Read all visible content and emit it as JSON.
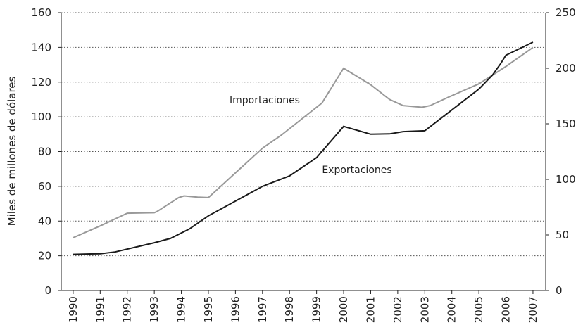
{
  "chart_data": {
    "type": "line",
    "ylabel": "Miles de millones de dólares",
    "xlim": [
      1989.56,
      2007.47
    ],
    "xticks": [
      1990,
      1991,
      1992,
      1993,
      1994,
      1995,
      1996,
      1997,
      1998,
      1999,
      2000,
      2001,
      2002,
      2003,
      2004,
      2005,
      2006,
      2007
    ],
    "ylim": [
      0,
      160
    ],
    "yticks": [
      0,
      20,
      40,
      60,
      80,
      100,
      120,
      140,
      160
    ],
    "y2lim": [
      0,
      250
    ],
    "y2ticks": [
      0,
      50,
      100,
      150,
      200,
      250
    ],
    "grid": true,
    "annotations": [
      {
        "text": "Importaciones",
        "series": 0
      },
      {
        "text": "Exportaciones",
        "series": 1
      }
    ],
    "series": [
      {
        "name": "Importaciones",
        "color": "#999999",
        "x": [
          1990,
          1991,
          1992,
          1993,
          1993.1,
          1993.5,
          1993.9,
          1994.1,
          1994.6,
          1995,
          1997,
          1997.7,
          1999.2,
          2000,
          2001,
          2001.7,
          2002.2,
          2002.9,
          2003.2,
          2003.9,
          2005,
          2006,
          2007
        ],
        "values": [
          30.4,
          37.2,
          44.5,
          44.8,
          45.5,
          49.5,
          53.5,
          54.5,
          53.8,
          53.5,
          82,
          89.5,
          108,
          128,
          118.5,
          110,
          106.5,
          105.5,
          106.5,
          111.5,
          119,
          129,
          140
        ]
      },
      {
        "name": "Exportaciones",
        "color": "#1a1a1a",
        "x": [
          1990,
          1991,
          1991.55,
          1993,
          1993.6,
          1994.3,
          1995,
          1996,
          1997,
          1998,
          1999,
          2000,
          2001,
          2001.7,
          2002.2,
          2003,
          2004,
          2005,
          2005.5,
          2005.8,
          2006,
          2007
        ],
        "values": [
          20.8,
          21.2,
          22.2,
          27.5,
          30,
          35.5,
          43,
          51.5,
          60,
          66,
          76.5,
          94.5,
          90,
          90.2,
          91.5,
          92,
          104,
          116,
          124,
          130.5,
          135.5,
          143
        ]
      }
    ]
  }
}
